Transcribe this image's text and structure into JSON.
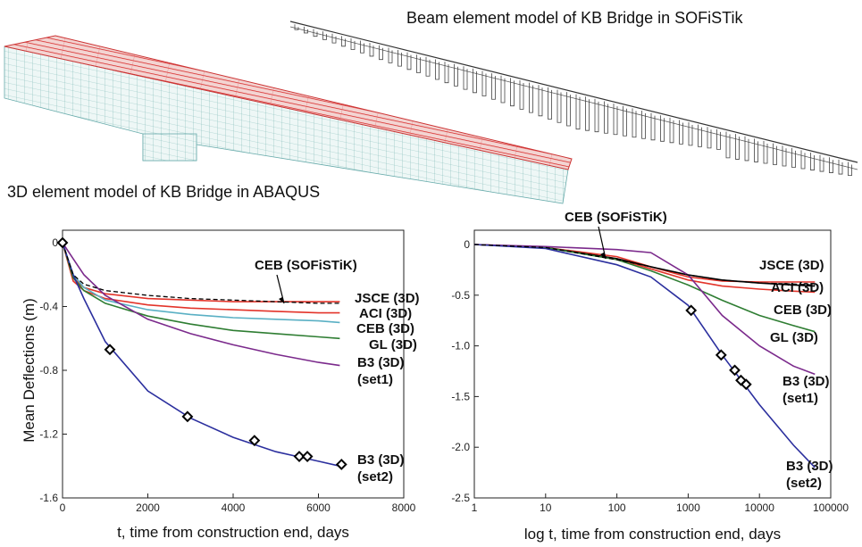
{
  "captions": {
    "beam": "Beam element model of KB Bridge in SOFiSTik",
    "solid": "3D element model of KB Bridge in ABAQUS"
  },
  "chart_data": [
    {
      "type": "line",
      "y_label": "Mean Deflections (m)",
      "x_label": "t, time from construction end, days",
      "annotation": "CEB (SOFiSTiK)",
      "xlim": [
        0,
        8000
      ],
      "ylim": [
        -1.6,
        0
      ],
      "xticks": [
        0,
        2000,
        4000,
        6000,
        8000
      ],
      "yticks": [
        0,
        -0.4,
        -0.8,
        -1.2,
        -1.6
      ],
      "x": [
        0,
        250,
        500,
        1000,
        2000,
        3000,
        4000,
        5000,
        6000,
        6500
      ],
      "series": [
        {
          "name": "JSCE (3D)",
          "color": "#e3342a",
          "values": [
            0,
            -0.22,
            -0.28,
            -0.32,
            -0.35,
            -0.36,
            -0.37,
            -0.37,
            -0.37,
            -0.37
          ]
        },
        {
          "name": "ACI (3D)",
          "color": "#e3342a",
          "values": [
            0,
            -0.24,
            -0.3,
            -0.35,
            -0.39,
            -0.41,
            -0.42,
            -0.43,
            -0.44,
            -0.44
          ]
        },
        {
          "name": "CEB (3D)",
          "color": "#5ab0c4",
          "values": [
            0,
            -0.2,
            -0.28,
            -0.36,
            -0.42,
            -0.45,
            -0.47,
            -0.48,
            -0.49,
            -0.5
          ]
        },
        {
          "name": "GL (3D)",
          "color": "#2e7d32",
          "values": [
            0,
            -0.22,
            -0.3,
            -0.38,
            -0.46,
            -0.51,
            -0.55,
            -0.57,
            -0.59,
            -0.6
          ]
        },
        {
          "name": "B3 (3D)\n(set1)",
          "color": "#7b2a8c",
          "values": [
            0,
            -0.1,
            -0.2,
            -0.33,
            -0.48,
            -0.57,
            -0.64,
            -0.7,
            -0.75,
            -0.77
          ]
        },
        {
          "name": "B3 (3D)\n(set2)",
          "color": "#2b2f9e",
          "values": [
            0,
            -0.2,
            -0.35,
            -0.62,
            -0.93,
            -1.1,
            -1.22,
            -1.31,
            -1.37,
            -1.4
          ]
        },
        {
          "color": "#000000",
          "dashed": true,
          "values": [
            0,
            -0.2,
            -0.26,
            -0.3,
            -0.33,
            -0.35,
            -0.36,
            -0.37,
            -0.38,
            -0.38
          ]
        },
        {
          "marker": "diamond",
          "color": "#000000",
          "x": [
            0,
            1110,
            2930,
            4500,
            5550,
            5740,
            6540
          ],
          "values": [
            0,
            -0.67,
            -1.09,
            -1.24,
            -1.34,
            -1.34,
            -1.39
          ]
        }
      ]
    },
    {
      "type": "line",
      "x_label": "log t, time from construction end, days",
      "annotation": "CEB (SOFiSTiK)",
      "log_x": true,
      "xlim": [
        1,
        100000
      ],
      "ylim": [
        -2.5,
        0
      ],
      "xticks": [
        1,
        10,
        100,
        1000,
        10000,
        100000
      ],
      "yticks": [
        0,
        -0.5,
        {
          "value": -1,
          "label": "-1.0"
        },
        -1.5,
        {
          "value": -2,
          "label": "-2.0"
        },
        -2.5
      ],
      "x": [
        1,
        10,
        100,
        300,
        1000,
        3000,
        10000,
        30000,
        60000
      ],
      "series": [
        {
          "name": "JSCE (3D)",
          "color": "#e3342a",
          "values": [
            0,
            -0.03,
            -0.12,
            -0.22,
            -0.32,
            -0.36,
            -0.37,
            -0.37,
            -0.37
          ]
        },
        {
          "name": "ACI (3D)",
          "color": "#e3342a",
          "values": [
            0,
            -0.03,
            -0.14,
            -0.24,
            -0.35,
            -0.41,
            -0.44,
            -0.46,
            -0.47
          ]
        },
        {
          "name": "CEB (3D)",
          "color": "#000000",
          "values": [
            0,
            -0.03,
            -0.14,
            -0.22,
            -0.3,
            -0.35,
            -0.38,
            -0.4,
            -0.41
          ]
        },
        {
          "name": "GL (3D)",
          "color": "#2e7d32",
          "values": [
            0,
            -0.03,
            -0.15,
            -0.26,
            -0.4,
            -0.55,
            -0.7,
            -0.8,
            -0.86
          ]
        },
        {
          "name": "B3 (3D)\n(set1)",
          "color": "#7b2a8c",
          "values": [
            0,
            -0.02,
            -0.05,
            -0.08,
            -0.3,
            -0.7,
            -1.0,
            -1.2,
            -1.28
          ]
        },
        {
          "name": "B3 (3D)\n(set2)",
          "color": "#2b2f9e",
          "values": [
            0,
            -0.04,
            -0.2,
            -0.32,
            -0.6,
            -1.09,
            -1.58,
            -1.98,
            -2.2
          ]
        },
        {
          "color": "#000000",
          "dashed": true,
          "values": [
            0,
            -0.03,
            -0.15,
            -0.22,
            -0.3,
            -0.35,
            -0.38,
            -0.39,
            -0.4
          ]
        },
        {
          "marker": "diamond",
          "color": "#000000",
          "x": [
            1100,
            2900,
            4500,
            5500,
            6500
          ],
          "values": [
            -0.65,
            -1.09,
            -1.24,
            -1.34,
            -1.38
          ]
        }
      ]
    }
  ]
}
